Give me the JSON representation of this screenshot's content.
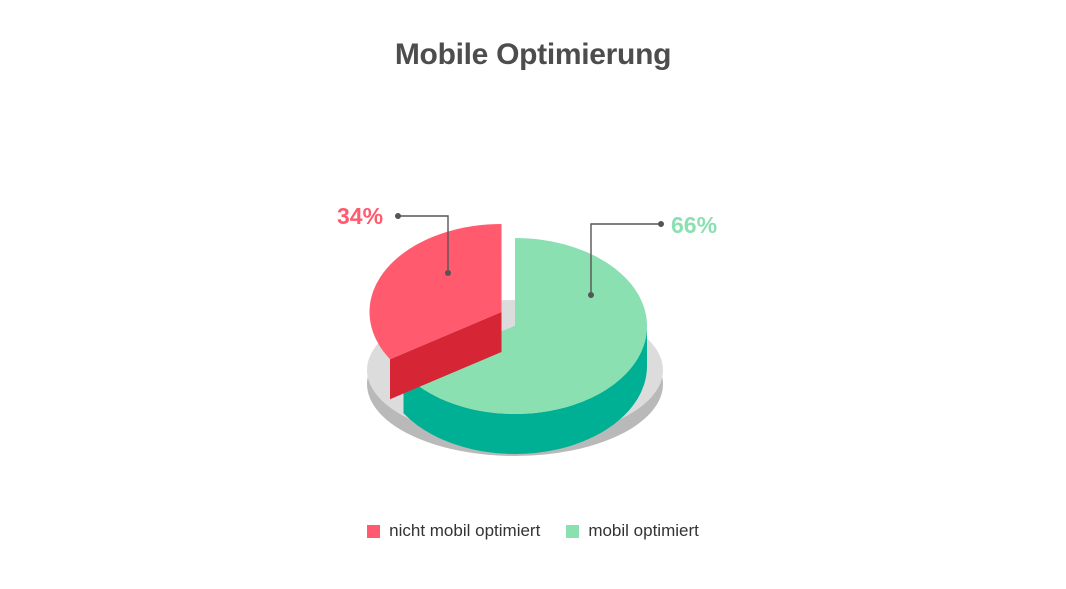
{
  "chart_data": {
    "type": "pie",
    "title": "Mobile Optimierung",
    "slices": [
      {
        "label": "nicht mobil optimiert",
        "value": 34,
        "value_label": "34%",
        "color": "#ff5a6e"
      },
      {
        "label": "mobil optimiert",
        "value": 66,
        "value_label": "66%",
        "color": "#8be0b1"
      }
    ],
    "legend_position": "bottom",
    "style": "3d"
  }
}
